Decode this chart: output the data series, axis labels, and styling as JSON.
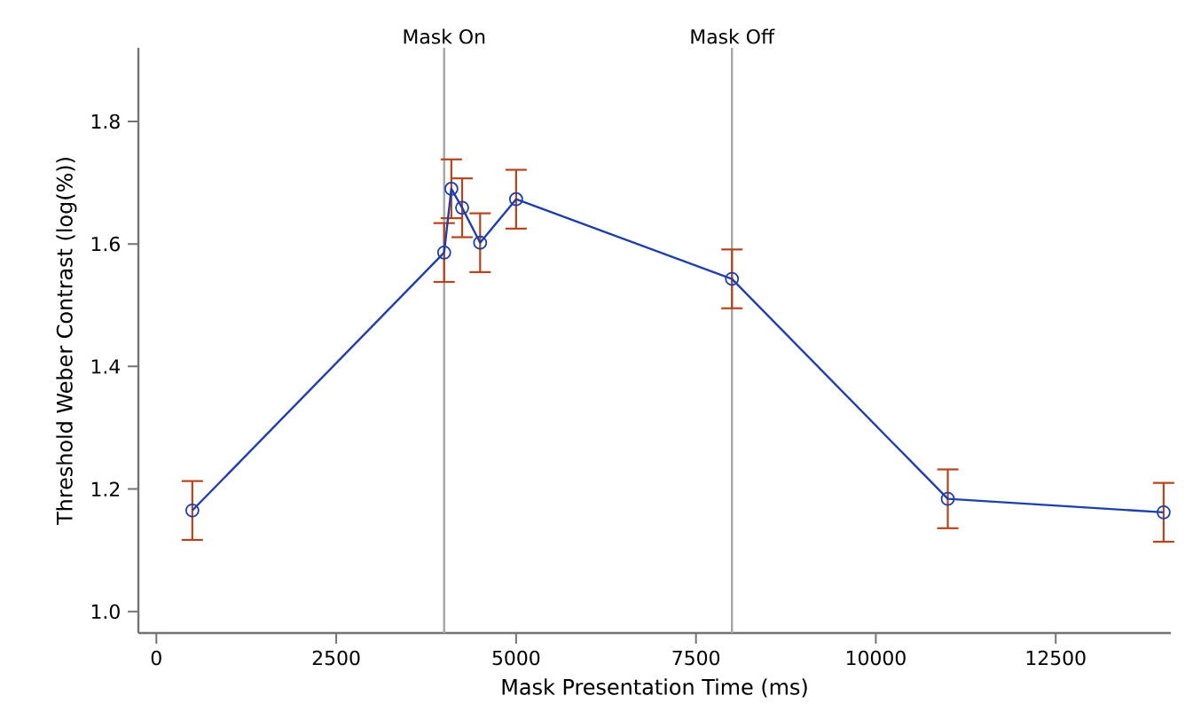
{
  "chart_data": {
    "type": "line",
    "xlabel": "Mask Presentation Time (ms)",
    "ylabel": "Threshold Weber Contrast (log(%))",
    "x": [
      500,
      4000,
      4100,
      4250,
      4500,
      5000,
      8000,
      11000,
      14000
    ],
    "series": [
      {
        "color": "#1f3fa8",
        "values": [
          1.165,
          1.586,
          1.69,
          1.659,
          1.602,
          1.673,
          1.543,
          1.184,
          1.162
        ],
        "errors": [
          0.048,
          0.048,
          0.048,
          0.048,
          0.048,
          0.048,
          0.048,
          0.048,
          0.048
        ]
      }
    ],
    "marker": "circle",
    "line_style": "solid",
    "grid": false,
    "xlim": [
      -250,
      14100
    ],
    "ylim": [
      0.965,
      1.92
    ],
    "xticks": [
      0,
      2500,
      5000,
      7500,
      10000,
      12500
    ],
    "yticks": [
      {
        "value": 1.0,
        "label": "1.0"
      },
      {
        "value": 1.2,
        "label": "1.2"
      },
      {
        "value": 1.4,
        "label": "1.4"
      },
      {
        "value": 1.6,
        "label": "1.6"
      },
      {
        "value": 1.8,
        "label": "1.8"
      }
    ],
    "ref_lines": [
      {
        "axis": "x",
        "value": 4000,
        "label": "Mask On",
        "color": "#a6a6a6"
      },
      {
        "axis": "x",
        "value": 8000,
        "label": "Mask Off",
        "color": "#a6a6a6"
      }
    ]
  }
}
